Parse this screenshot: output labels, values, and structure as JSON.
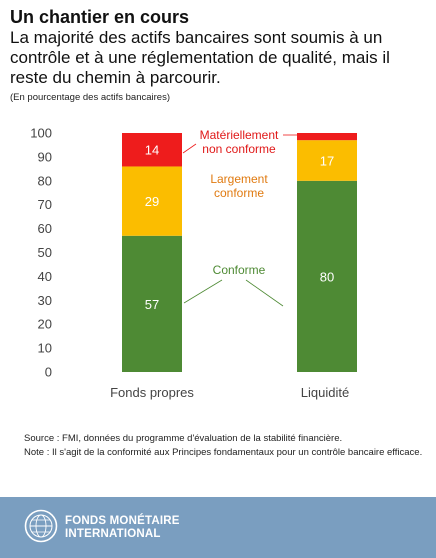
{
  "header": {
    "title": "Un chantier en cours",
    "subtitle": "La majorité des actifs bancaires sont soumis à un contrôle et à une réglementation de qualité, mais il reste du chemin à parcourir.",
    "units": "(En pourcentage des actifs bancaires)"
  },
  "chart_data": {
    "type": "bar",
    "stacked": true,
    "categories": [
      "Fonds propres",
      "Liquidité"
    ],
    "series": [
      {
        "name": "Conforme",
        "values": [
          57,
          80
        ],
        "color": "#4e8a34",
        "label_color": "#4e8a34"
      },
      {
        "name": "Largement conforme",
        "values": [
          29,
          17
        ],
        "color": "#fbbd00",
        "label_color": "#e07a10"
      },
      {
        "name": "Matériellement non conforme",
        "values": [
          14,
          3
        ],
        "color": "#ee1c1c",
        "label_color": "#e01818"
      }
    ],
    "data_labels": [
      [
        "57",
        "80"
      ],
      [
        "29",
        "17"
      ],
      [
        "14",
        ""
      ]
    ],
    "yticks": [
      0,
      10,
      20,
      30,
      40,
      50,
      60,
      70,
      80,
      90,
      100
    ],
    "ylim": [
      0,
      100
    ],
    "annotations": [
      {
        "lines": [
          "Matériellement",
          "non conforme"
        ],
        "series": 2
      },
      {
        "lines": [
          "Largement",
          "conforme"
        ],
        "series": 1
      },
      {
        "lines": [
          "Conforme"
        ],
        "series": 0
      }
    ]
  },
  "footer": {
    "source": "Source : FMI, données du programme d'évaluation de la stabilité financière.",
    "note": "Note : Il s'agit de la conformité aux Principes fondamentaux pour un contrôle bancaire efficace."
  },
  "branding": {
    "logo_line1": "FONDS MONÉTAIRE",
    "logo_line2": "INTERNATIONAL",
    "logo_icon": "imf-seal-icon"
  }
}
